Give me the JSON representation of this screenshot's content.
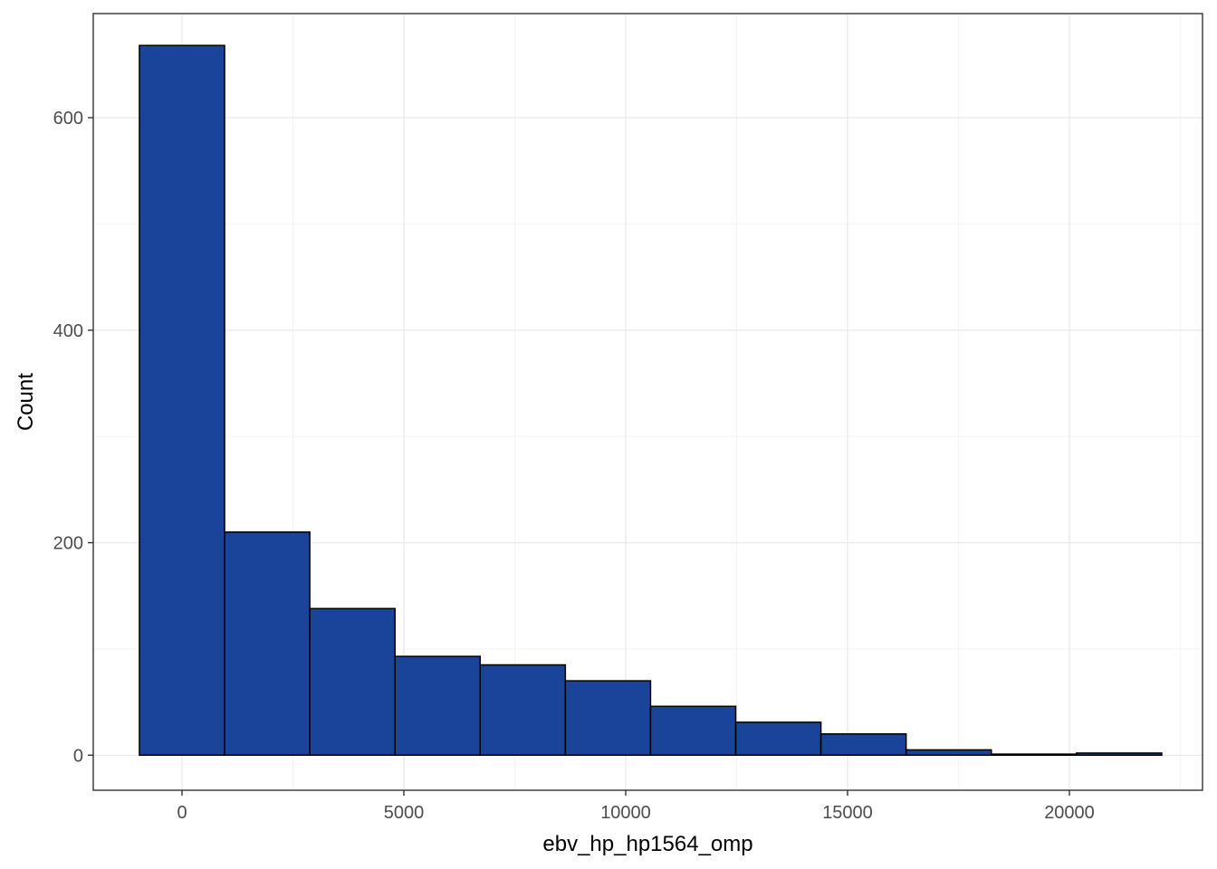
{
  "chart_data": {
    "type": "bar",
    "subtype": "histogram",
    "title": "",
    "xlabel": "ebv_hp_hp1564_omp",
    "ylabel": "Count",
    "xlim": [
      -2000,
      23000
    ],
    "ylim": [
      -33,
      698
    ],
    "x_ticks": [
      0,
      5000,
      10000,
      15000,
      20000
    ],
    "y_ticks": [
      0,
      200,
      400,
      600
    ],
    "x_tick_labels": [
      "0",
      "5000",
      "10000",
      "15000",
      "20000"
    ],
    "y_tick_labels": [
      "0",
      "200",
      "400",
      "600"
    ],
    "bins": [
      {
        "x_start": -960,
        "x_end": 960,
        "count": 668
      },
      {
        "x_start": 960,
        "x_end": 2880,
        "count": 210
      },
      {
        "x_start": 2880,
        "x_end": 4800,
        "count": 138
      },
      {
        "x_start": 4800,
        "x_end": 6720,
        "count": 93
      },
      {
        "x_start": 6720,
        "x_end": 8640,
        "count": 85
      },
      {
        "x_start": 8640,
        "x_end": 10560,
        "count": 70
      },
      {
        "x_start": 10560,
        "x_end": 12480,
        "count": 46
      },
      {
        "x_start": 12480,
        "x_end": 14400,
        "count": 31
      },
      {
        "x_start": 14400,
        "x_end": 16320,
        "count": 20
      },
      {
        "x_start": 16320,
        "x_end": 18240,
        "count": 5
      },
      {
        "x_start": 18240,
        "x_end": 20160,
        "count": 1
      },
      {
        "x_start": 20160,
        "x_end": 22080,
        "count": 2
      }
    ],
    "grid": true,
    "legend": "none",
    "colors": {
      "bar_fill": "#1a4499",
      "bar_outline": "#000000",
      "panel_border": "#333333",
      "grid_major": "#ebebeb",
      "grid_minor": "#f2f2f2",
      "tick_label": "#4d4d4d",
      "axis_title": "#000000"
    }
  }
}
